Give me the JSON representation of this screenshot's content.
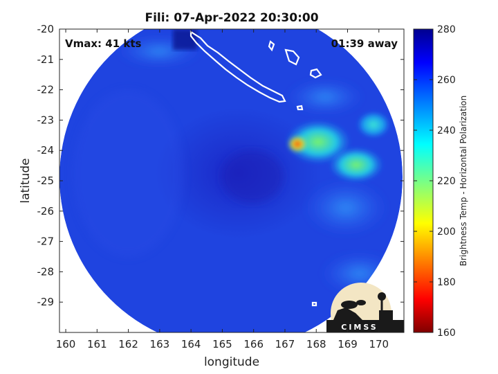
{
  "chart_data": {
    "type": "heatmap",
    "title": "Fili: 07-Apr-2022 20:30:00",
    "annotations": {
      "vmax": "Vmax: 41 kts",
      "time_away": "01:39 away"
    },
    "xlabel": "longitude",
    "ylabel": "latitude",
    "xlim": [
      159.8,
      170.8
    ],
    "ylim": [
      -30,
      -20
    ],
    "x_ticks": [
      "160",
      "161",
      "162",
      "163",
      "164",
      "165",
      "166",
      "167",
      "168",
      "169",
      "170"
    ],
    "y_ticks": [
      "-20",
      "-21",
      "-22",
      "-23",
      "-24",
      "-25",
      "-26",
      "-27",
      "-28",
      "-29"
    ],
    "colorbar": {
      "label": "Brightness Temp - Horizontal Polarization",
      "range": [
        160,
        280
      ],
      "ticks": [
        "280",
        "260",
        "240",
        "220",
        "200",
        "180",
        "160"
      ],
      "colormap": "jet"
    },
    "field": {
      "center": [
        165.2,
        -24.9
      ],
      "radius_deg": 5.6,
      "background_value": 262,
      "features": [
        {
          "kind": "cold-core",
          "center": [
            165.8,
            -25.0
          ],
          "value": 268
        },
        {
          "kind": "warm-band",
          "center": [
            167.6,
            -23.7
          ],
          "value": 232
        },
        {
          "kind": "warm-max",
          "center": [
            167.4,
            -23.9
          ],
          "value": 205
        },
        {
          "kind": "warm-band",
          "center": [
            169.0,
            -24.2
          ],
          "value": 236
        },
        {
          "kind": "warm-band",
          "center": [
            169.9,
            -23.2
          ],
          "value": 240
        },
        {
          "kind": "warm-patch",
          "center": [
            164.2,
            -20.6
          ],
          "value": 248
        }
      ]
    },
    "coastlines": "New Caledonia and nearby islands (white outlines)",
    "grid": false,
    "logo": "CIMSS"
  }
}
